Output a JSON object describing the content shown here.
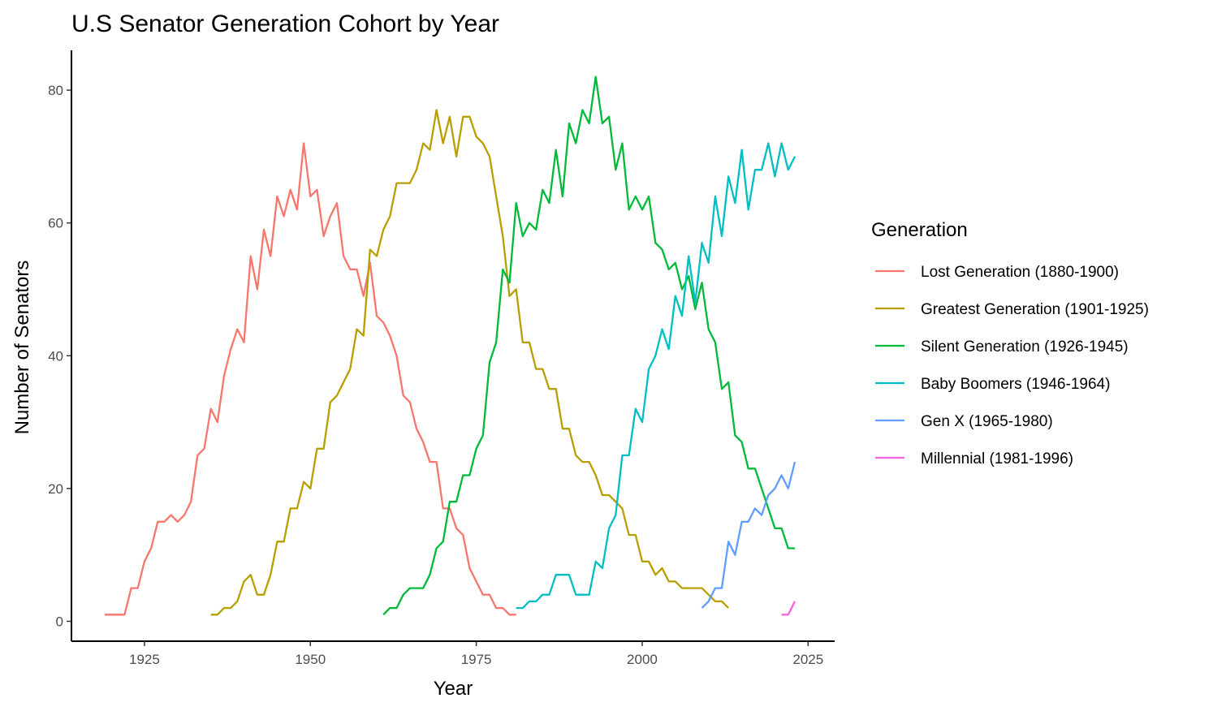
{
  "chart_data": {
    "type": "line",
    "title": "U.S Senator Generation Cohort by Year",
    "xlabel": "Year",
    "ylabel": "Number of Senators",
    "xlim": [
      1914,
      2029
    ],
    "ylim": [
      -3,
      86
    ],
    "xticks": [
      1925,
      1950,
      1975,
      2000,
      2025
    ],
    "yticks": [
      0,
      20,
      40,
      60,
      80
    ],
    "grid": false,
    "legend": {
      "title": "Generation",
      "position": "right"
    },
    "series": [
      {
        "name": "Lost Generation (1880-1900)",
        "color": "#F8766D",
        "x": [
          1919,
          1920,
          1921,
          1922,
          1923,
          1924,
          1925,
          1926,
          1927,
          1928,
          1929,
          1930,
          1931,
          1932,
          1933,
          1934,
          1935,
          1936,
          1937,
          1938,
          1939,
          1940,
          1941,
          1942,
          1943,
          1944,
          1945,
          1946,
          1947,
          1948,
          1949,
          1950,
          1951,
          1952,
          1953,
          1954,
          1955,
          1956,
          1957,
          1958,
          1959,
          1960,
          1961,
          1962,
          1963,
          1964,
          1965,
          1966,
          1967,
          1968,
          1969,
          1970,
          1971,
          1972,
          1973,
          1974,
          1975,
          1976,
          1977,
          1978,
          1979,
          1980,
          1981
        ],
        "y": [
          1,
          1,
          1,
          1,
          5,
          5,
          9,
          11,
          15,
          15,
          16,
          15,
          16,
          18,
          25,
          26,
          32,
          30,
          37,
          41,
          44,
          42,
          55,
          50,
          59,
          55,
          64,
          61,
          65,
          62,
          72,
          64,
          65,
          58,
          61,
          63,
          55,
          53,
          53,
          49,
          54,
          46,
          45,
          43,
          40,
          34,
          33,
          29,
          27,
          24,
          24,
          17,
          17,
          14,
          13,
          8,
          6,
          4,
          4,
          2,
          2,
          1,
          1
        ]
      },
      {
        "name": "Greatest Generation (1901-1925)",
        "color": "#B79F00",
        "x": [
          1935,
          1936,
          1937,
          1938,
          1939,
          1940,
          1941,
          1942,
          1943,
          1944,
          1945,
          1946,
          1947,
          1948,
          1949,
          1950,
          1951,
          1952,
          1953,
          1954,
          1955,
          1956,
          1957,
          1958,
          1959,
          1960,
          1961,
          1962,
          1963,
          1964,
          1965,
          1966,
          1967,
          1968,
          1969,
          1970,
          1971,
          1972,
          1973,
          1974,
          1975,
          1976,
          1977,
          1978,
          1979,
          1980,
          1981,
          1982,
          1983,
          1984,
          1985,
          1986,
          1987,
          1988,
          1989,
          1990,
          1991,
          1992,
          1993,
          1994,
          1995,
          1996,
          1997,
          1998,
          1999,
          2000,
          2001,
          2002,
          2003,
          2004,
          2005,
          2006,
          2007,
          2008,
          2009,
          2010,
          2011,
          2012,
          2013
        ],
        "y": [
          1,
          1,
          2,
          2,
          3,
          6,
          7,
          4,
          4,
          7,
          12,
          12,
          17,
          17,
          21,
          20,
          26,
          26,
          33,
          34,
          36,
          38,
          44,
          43,
          56,
          55,
          59,
          61,
          66,
          66,
          66,
          68,
          72,
          71,
          77,
          72,
          76,
          70,
          76,
          76,
          73,
          72,
          70,
          64,
          58,
          49,
          50,
          42,
          42,
          38,
          38,
          35,
          35,
          29,
          29,
          25,
          24,
          24,
          22,
          19,
          19,
          18,
          17,
          13,
          13,
          9,
          9,
          7,
          8,
          6,
          6,
          5,
          5,
          5,
          5,
          4,
          3,
          3,
          2
        ]
      },
      {
        "name": "Silent Generation (1926-1945)",
        "color": "#00BA38",
        "x": [
          1961,
          1962,
          1963,
          1964,
          1965,
          1966,
          1967,
          1968,
          1969,
          1970,
          1971,
          1972,
          1973,
          1974,
          1975,
          1976,
          1977,
          1978,
          1979,
          1980,
          1981,
          1982,
          1983,
          1984,
          1985,
          1986,
          1987,
          1988,
          1989,
          1990,
          1991,
          1992,
          1993,
          1994,
          1995,
          1996,
          1997,
          1998,
          1999,
          2000,
          2001,
          2002,
          2003,
          2004,
          2005,
          2006,
          2007,
          2008,
          2009,
          2010,
          2011,
          2012,
          2013,
          2014,
          2015,
          2016,
          2017,
          2018,
          2019,
          2020,
          2021,
          2022,
          2023
        ],
        "y": [
          1,
          2,
          2,
          4,
          5,
          5,
          5,
          7,
          11,
          12,
          18,
          18,
          22,
          22,
          26,
          28,
          39,
          42,
          53,
          51,
          63,
          58,
          60,
          59,
          65,
          63,
          71,
          64,
          75,
          72,
          77,
          75,
          82,
          75,
          76,
          68,
          72,
          62,
          64,
          62,
          64,
          57,
          56,
          53,
          54,
          50,
          52,
          47,
          51,
          44,
          42,
          35,
          36,
          28,
          27,
          23,
          23,
          20,
          17,
          14,
          14,
          11,
          11
        ]
      },
      {
        "name": "Baby Boomers (1946-1964)",
        "color": "#00BFC4",
        "x": [
          1981,
          1982,
          1983,
          1984,
          1985,
          1986,
          1987,
          1988,
          1989,
          1990,
          1991,
          1992,
          1993,
          1994,
          1995,
          1996,
          1997,
          1998,
          1999,
          2000,
          2001,
          2002,
          2003,
          2004,
          2005,
          2006,
          2007,
          2008,
          2009,
          2010,
          2011,
          2012,
          2013,
          2014,
          2015,
          2016,
          2017,
          2018,
          2019,
          2020,
          2021,
          2022,
          2023
        ],
        "y": [
          2,
          2,
          3,
          3,
          4,
          4,
          7,
          7,
          7,
          4,
          4,
          4,
          9,
          8,
          14,
          16,
          25,
          25,
          32,
          30,
          38,
          40,
          44,
          41,
          49,
          46,
          55,
          48,
          57,
          54,
          64,
          58,
          67,
          63,
          71,
          62,
          68,
          68,
          72,
          67,
          72,
          68,
          70
        ]
      },
      {
        "name": "Gen X (1965-1980)",
        "color": "#619CFF",
        "x": [
          2009,
          2010,
          2011,
          2012,
          2013,
          2014,
          2015,
          2016,
          2017,
          2018,
          2019,
          2020,
          2021,
          2022,
          2023
        ],
        "y": [
          2,
          3,
          5,
          5,
          12,
          10,
          15,
          15,
          17,
          16,
          19,
          20,
          22,
          20,
          24
        ]
      },
      {
        "name": "Millennial (1981-1996)",
        "color": "#F564E3",
        "x": [
          2021,
          2022,
          2023
        ],
        "y": [
          1,
          1,
          3
        ]
      }
    ]
  }
}
